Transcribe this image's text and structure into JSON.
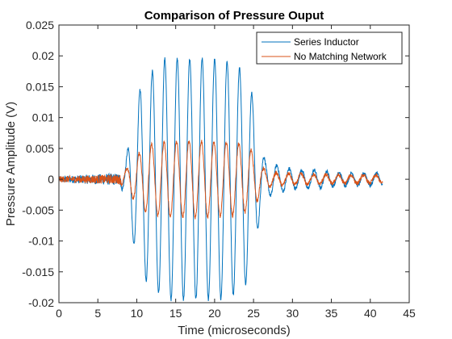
{
  "chart_data": {
    "type": "line",
    "title": "Comparison of Pressure Ouput",
    "xlabel": "Time (microseconds)",
    "ylabel": "Pressure Amplitude (V)",
    "xlim": [
      0,
      45
    ],
    "ylim": [
      -0.02,
      0.025
    ],
    "xticks": [
      0,
      5,
      10,
      15,
      20,
      25,
      30,
      35,
      40,
      45
    ],
    "xtick_labels": [
      "0",
      "5",
      "10",
      "15",
      "20",
      "25",
      "30",
      "35",
      "40",
      "45"
    ],
    "yticks": [
      -0.02,
      -0.015,
      -0.01,
      -0.005,
      0,
      0.005,
      0.01,
      0.015,
      0.02,
      0.025
    ],
    "ytick_labels": [
      "-0.02",
      "-0.015",
      "-0.01",
      "-0.005",
      "0",
      "0.005",
      "0.01",
      "0.015",
      "0.02",
      "0.025"
    ],
    "grid": false,
    "legend_position": "top-right",
    "x_start": 0,
    "x_end": 41.6,
    "series": [
      {
        "name": "Series Inductor",
        "color": "#0072BD",
        "carrier_period": 1.6,
        "envelope": [
          [
            0,
            0.0005
          ],
          [
            7.8,
            0.001
          ],
          [
            8.6,
            0.003
          ],
          [
            9.5,
            0.01
          ],
          [
            10.5,
            0.015
          ],
          [
            11.5,
            0.017
          ],
          [
            12.5,
            0.018
          ],
          [
            13.5,
            0.0195
          ],
          [
            14.5,
            0.0195
          ],
          [
            17,
            0.0195
          ],
          [
            20,
            0.0195
          ],
          [
            22,
            0.019
          ],
          [
            23.5,
            0.018
          ],
          [
            24.5,
            0.016
          ],
          [
            25.2,
            0.011
          ],
          [
            25.8,
            0.006
          ],
          [
            26.5,
            0.003
          ],
          [
            27.5,
            0.0025
          ],
          [
            28.5,
            0.002
          ],
          [
            30.5,
            0.0015
          ],
          [
            33,
            0.0015
          ],
          [
            36,
            0.001
          ],
          [
            41.6,
            0.001
          ]
        ]
      },
      {
        "name": "No Matching Network",
        "color": "#D95319",
        "carrier_period": 1.6,
        "envelope": [
          [
            0,
            0.0005
          ],
          [
            7.8,
            0.0008
          ],
          [
            8.6,
            0.0015
          ],
          [
            9.5,
            0.003
          ],
          [
            10.5,
            0.0045
          ],
          [
            11.5,
            0.0055
          ],
          [
            12.5,
            0.0058
          ],
          [
            14,
            0.006
          ],
          [
            18,
            0.0062
          ],
          [
            21,
            0.006
          ],
          [
            23,
            0.0058
          ],
          [
            24.5,
            0.005
          ],
          [
            25.3,
            0.004
          ],
          [
            26,
            0.002
          ],
          [
            27,
            0.0012
          ],
          [
            28,
            0.001
          ],
          [
            30,
            0.0009
          ],
          [
            35,
            0.0007
          ],
          [
            41.6,
            0.0006
          ]
        ]
      }
    ]
  }
}
